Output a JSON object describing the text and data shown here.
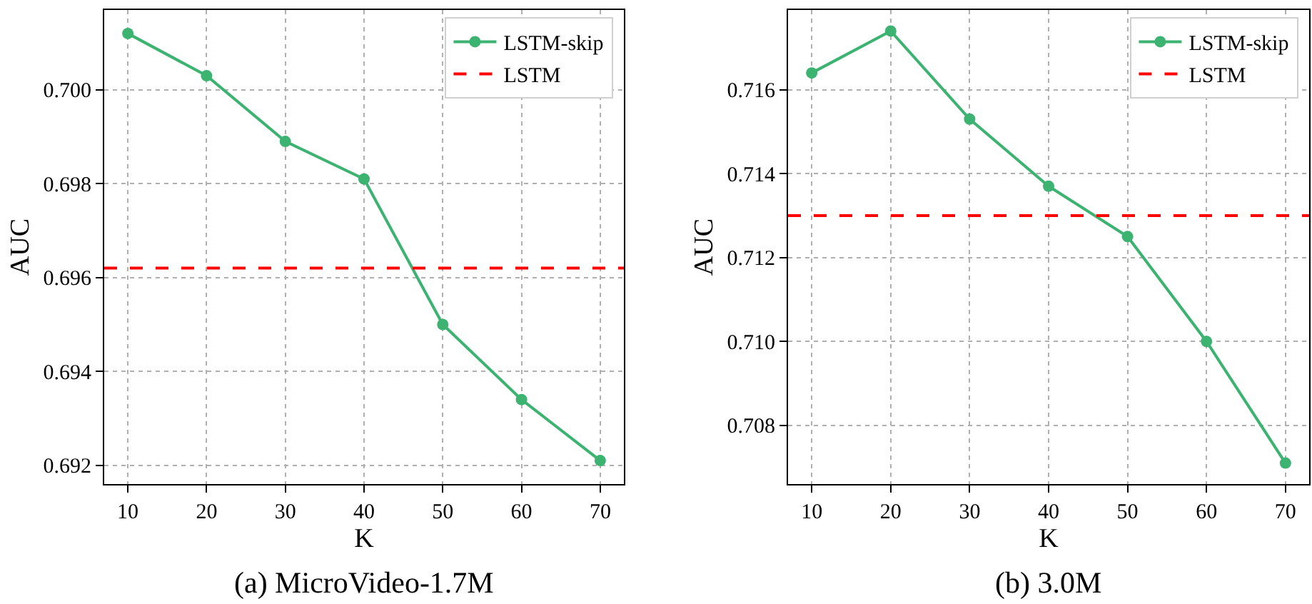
{
  "chart_data": [
    {
      "type": "line",
      "xlabel": "K",
      "ylabel": "AUC",
      "x": [
        10,
        20,
        30,
        40,
        50,
        60,
        70
      ],
      "series": [
        {
          "name": "LSTM-skip",
          "color": "#3cb371",
          "values": [
            0.7012,
            0.7003,
            0.6989,
            0.6981,
            0.695,
            0.6934,
            0.6921
          ]
        }
      ],
      "ref_lines": [
        {
          "axis": "y",
          "value": 0.6962,
          "label": "LSTM",
          "color": "#ff0000",
          "line_style": "dashed"
        }
      ],
      "xlim": [
        7,
        73
      ],
      "xticks": [
        10,
        20,
        30,
        40,
        50,
        60,
        70
      ],
      "ylim": [
        0.6916,
        0.7017
      ],
      "yticks": [
        {
          "value": 0.692,
          "label": "0.692"
        },
        {
          "value": 0.694,
          "label": "0.694"
        },
        {
          "value": 0.696,
          "label": "0.696"
        },
        {
          "value": 0.698,
          "label": "0.698"
        },
        {
          "value": 0.7,
          "label": "0.700"
        }
      ],
      "grid": true,
      "legend": "top right",
      "marker": "circle",
      "line_style": "solid",
      "annotations": [
        "(a) MicroVideo-1.7M"
      ]
    },
    {
      "type": "line",
      "xlabel": "K",
      "ylabel": "AUC",
      "x": [
        10,
        20,
        30,
        40,
        50,
        60,
        70
      ],
      "series": [
        {
          "name": "LSTM-skip",
          "color": "#3cb371",
          "values": [
            0.7164,
            0.7174,
            0.7153,
            0.7137,
            0.7125,
            0.71,
            0.7071
          ]
        }
      ],
      "ref_lines": [
        {
          "axis": "y",
          "value": 0.713,
          "label": "LSTM",
          "color": "#ff0000",
          "line_style": "dashed"
        }
      ],
      "xlim": [
        7,
        73
      ],
      "xticks": [
        10,
        20,
        30,
        40,
        50,
        60,
        70
      ],
      "ylim": [
        0.7066,
        0.7179
      ],
      "yticks": [
        {
          "value": 0.708,
          "label": "0.708"
        },
        {
          "value": 0.71,
          "label": "0.710"
        },
        {
          "value": 0.712,
          "label": "0.712"
        },
        {
          "value": 0.714,
          "label": "0.714"
        },
        {
          "value": 0.716,
          "label": "0.716"
        }
      ],
      "grid": true,
      "legend": "top right",
      "marker": "circle",
      "line_style": "solid",
      "annotations": [
        "(b) 3.0M"
      ]
    }
  ]
}
